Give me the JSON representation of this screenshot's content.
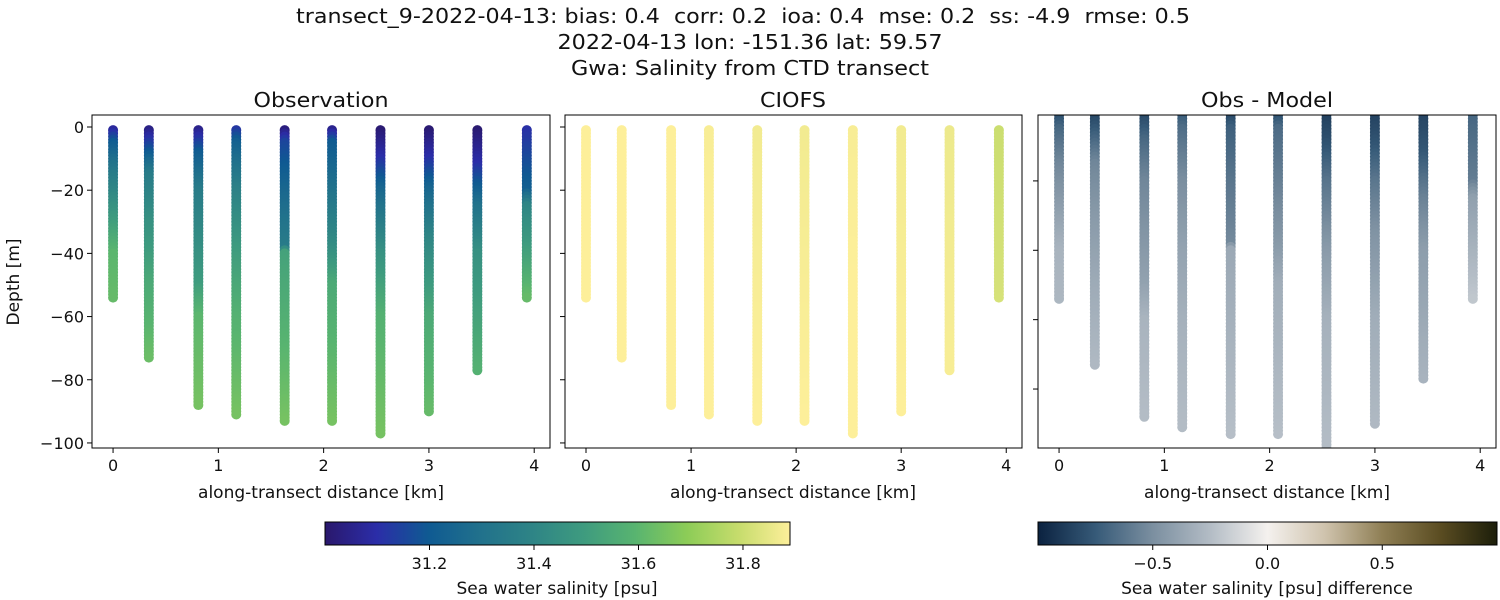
{
  "figure": {
    "title_line1": "transect_9-2022-04-13: bias: 0.4  corr: 0.2  ioa: 0.4  mse: 0.2  ss: -4.9  rmse: 0.5",
    "title_line2": "2022-04-13 lon: -151.36 lat: 59.57",
    "title_line3": "Gwa: Salinity from CTD transect"
  },
  "chart_data": [
    {
      "type": "scatter",
      "title": "Observation",
      "xlabel": "along-transect distance [km]",
      "ylabel": "Depth [m]",
      "xlim": [
        -0.2,
        4.15
      ],
      "ylim": [
        -101.6,
        3.8
      ],
      "xticks": [
        "0",
        "1",
        "2",
        "3",
        "4"
      ],
      "yticks": [
        "0",
        "−20",
        "−40",
        "−60",
        "−80",
        "−100"
      ],
      "color_field": "observation",
      "colormap": "haline"
    },
    {
      "type": "scatter",
      "title": "CIOFS",
      "xlabel": "along-transect distance [km]",
      "ylabel": "",
      "xlim": [
        -0.2,
        4.15
      ],
      "ylim": [
        -101.6,
        3.8
      ],
      "xticks": [
        "0",
        "1",
        "2",
        "3",
        "4"
      ],
      "yticks": [],
      "color_field": "model",
      "colormap": "haline"
    },
    {
      "type": "scatter",
      "title": "Obs - Model",
      "xlabel": "along-transect distance [km]",
      "ylabel": "",
      "xlim": [
        -0.2,
        4.15
      ],
      "ylim": [
        -97,
        -1
      ],
      "xticks": [
        "0",
        "1",
        "2",
        "3",
        "4"
      ],
      "yticks": [],
      "color_field": "difference",
      "colormap": "diff"
    }
  ],
  "stations": [
    {
      "x": 0.0,
      "bottom": -54,
      "obs": [
        [
          0,
          31.05
        ],
        [
          -5,
          31.2
        ],
        [
          -15,
          31.35
        ],
        [
          -25,
          31.45
        ],
        [
          -40,
          31.6
        ],
        [
          -54,
          31.62
        ]
      ],
      "model": [
        [
          0,
          31.89
        ],
        [
          -54,
          31.9
        ]
      ]
    },
    {
      "x": 0.34,
      "bottom": -73,
      "obs": [
        [
          0,
          31.02
        ],
        [
          -6,
          31.15
        ],
        [
          -15,
          31.35
        ],
        [
          -30,
          31.45
        ],
        [
          -50,
          31.55
        ],
        [
          -73,
          31.63
        ]
      ],
      "model": [
        [
          0,
          31.89
        ],
        [
          -73,
          31.9
        ]
      ]
    },
    {
      "x": 0.81,
      "bottom": -88,
      "obs": [
        [
          0,
          31.03
        ],
        [
          -8,
          31.2
        ],
        [
          -20,
          31.35
        ],
        [
          -50,
          31.5
        ],
        [
          -60,
          31.6
        ],
        [
          -88,
          31.65
        ]
      ],
      "model": [
        [
          0,
          31.89
        ],
        [
          -88,
          31.9
        ]
      ]
    },
    {
      "x": 1.17,
      "bottom": -91,
      "obs": [
        [
          0,
          31.1
        ],
        [
          -5,
          31.22
        ],
        [
          -20,
          31.38
        ],
        [
          -40,
          31.5
        ],
        [
          -60,
          31.58
        ],
        [
          -91,
          31.65
        ]
      ],
      "model": [
        [
          0,
          31.88
        ],
        [
          -91,
          31.9
        ]
      ]
    },
    {
      "x": 1.63,
      "bottom": -93,
      "obs": [
        [
          0,
          31.0
        ],
        [
          -5,
          31.15
        ],
        [
          -20,
          31.25
        ],
        [
          -38,
          31.35
        ],
        [
          -40,
          31.52
        ],
        [
          -93,
          31.65
        ]
      ],
      "model": [
        [
          0,
          31.87
        ],
        [
          -93,
          31.89
        ]
      ]
    },
    {
      "x": 2.08,
      "bottom": -93,
      "obs": [
        [
          0,
          31.02
        ],
        [
          -5,
          31.2
        ],
        [
          -20,
          31.3
        ],
        [
          -40,
          31.45
        ],
        [
          -50,
          31.55
        ],
        [
          -93,
          31.65
        ]
      ],
      "model": [
        [
          0,
          31.87
        ],
        [
          -93,
          31.89
        ]
      ]
    },
    {
      "x": 2.54,
      "bottom": -97,
      "obs": [
        [
          0,
          31.0
        ],
        [
          -10,
          31.1
        ],
        [
          -20,
          31.25
        ],
        [
          -40,
          31.45
        ],
        [
          -60,
          31.58
        ],
        [
          -97,
          31.65
        ]
      ],
      "model": [
        [
          0,
          31.88
        ],
        [
          -97,
          31.9
        ]
      ]
    },
    {
      "x": 3.0,
      "bottom": -90,
      "obs": [
        [
          0,
          31.0
        ],
        [
          -10,
          31.1
        ],
        [
          -20,
          31.25
        ],
        [
          -35,
          31.4
        ],
        [
          -60,
          31.55
        ],
        [
          -90,
          31.62
        ]
      ],
      "model": [
        [
          0,
          31.87
        ],
        [
          -90,
          31.89
        ]
      ]
    },
    {
      "x": 3.46,
      "bottom": -77,
      "obs": [
        [
          0,
          31.0
        ],
        [
          -12,
          31.1
        ],
        [
          -25,
          31.3
        ],
        [
          -40,
          31.45
        ],
        [
          -77,
          31.58
        ]
      ],
      "model": [
        [
          0,
          31.86
        ],
        [
          -77,
          31.88
        ]
      ]
    },
    {
      "x": 3.93,
      "bottom": -54,
      "obs": [
        [
          0,
          31.1
        ],
        [
          -20,
          31.22
        ],
        [
          -25,
          31.4
        ],
        [
          -45,
          31.55
        ],
        [
          -54,
          31.62
        ]
      ],
      "model": [
        [
          0,
          31.8
        ],
        [
          -54,
          31.82
        ]
      ]
    }
  ],
  "colorbars": {
    "salinity": {
      "label": "Sea water salinity [psu]",
      "range": [
        31.0,
        31.89
      ],
      "ticks": [
        "31.2",
        "31.4",
        "31.6",
        "31.8"
      ],
      "colors": [
        "#2a186c",
        "#2b2da8",
        "#0f5a92",
        "#21718c",
        "#2e8486",
        "#3e9b7f",
        "#58b470",
        "#8ccc57",
        "#c6dc6c",
        "#fdef9a"
      ]
    },
    "difference": {
      "label": "Sea water salinity [psu] difference",
      "range": [
        -1.0,
        1.0
      ],
      "ticks": [
        "−0.5",
        "0.0",
        "0.5"
      ],
      "colors": [
        "#0b2240",
        "#365a78",
        "#7b8fa0",
        "#b3bcc5",
        "#f4f1ee",
        "#cfc3ad",
        "#8f7f55",
        "#5b4d22",
        "#1c1e0a"
      ]
    }
  }
}
